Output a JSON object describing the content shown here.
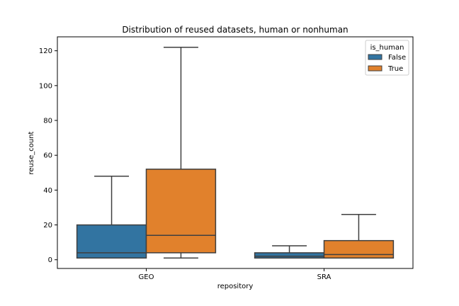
{
  "chart_data": {
    "type": "box",
    "title": "Distribution of reused datasets, human or nonhuman",
    "xlabel": "repository",
    "ylabel": "reuse_count",
    "categories": [
      "GEO",
      "SRA"
    ],
    "ylim": [
      -5,
      128
    ],
    "yticks": [
      0,
      20,
      40,
      60,
      80,
      100,
      120
    ],
    "grid": false,
    "legend": {
      "title": "is_human",
      "placement": "top-right",
      "entries": [
        "False",
        "True"
      ]
    },
    "series": [
      {
        "name": "False",
        "color": "#3274a1",
        "boxes": [
          {
            "category": "GEO",
            "min": 1,
            "q1": 1,
            "median": 4,
            "q3": 20,
            "max": 48
          },
          {
            "category": "SRA",
            "min": 1,
            "q1": 1,
            "median": 2,
            "q3": 4,
            "max": 8
          }
        ]
      },
      {
        "name": "True",
        "color": "#e1812c",
        "boxes": [
          {
            "category": "GEO",
            "min": 1,
            "q1": 4,
            "median": 14,
            "q3": 52,
            "max": 122
          },
          {
            "category": "SRA",
            "min": 1,
            "q1": 1,
            "median": 3,
            "q3": 11,
            "max": 26
          }
        ]
      }
    ]
  }
}
